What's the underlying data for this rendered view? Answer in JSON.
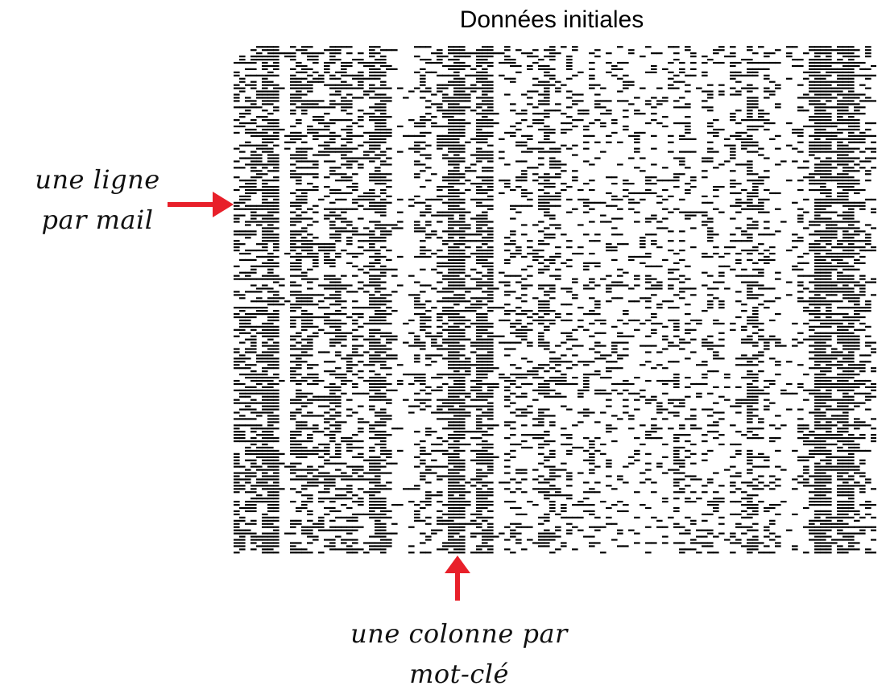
{
  "chart_data": {
    "type": "heatmap",
    "title": "Données initiales",
    "xlabel": "",
    "ylabel": "",
    "rows": 160,
    "columns": 114,
    "colors": {
      "present": "#000000",
      "absent": "#ffffff"
    },
    "column_density_profile": [
      0.45,
      0.45,
      0.5,
      0.55,
      0.45,
      0.78,
      0.8,
      0.78,
      0.1,
      0.05,
      0.58,
      0.62,
      0.55,
      0.58,
      0.38,
      0.35,
      0.45,
      0.55,
      0.5,
      0.4,
      0.45,
      0.4,
      0.35,
      0.3,
      0.72,
      0.75,
      0.72,
      0.4,
      0.12,
      0.08,
      0.05,
      0.1,
      0.35,
      0.4,
      0.35,
      0.3,
      0.4,
      0.45,
      0.88,
      0.92,
      0.88,
      0.35,
      0.3,
      0.72,
      0.75,
      0.72,
      0.05,
      0.1,
      0.35,
      0.38,
      0.3,
      0.35,
      0.25,
      0.2,
      0.45,
      0.5,
      0.45,
      0.3,
      0.25,
      0.28,
      0.2,
      0.18,
      0.22,
      0.25,
      0.2,
      0.15,
      0.3,
      0.28,
      0.22,
      0.2,
      0.18,
      0.2,
      0.15,
      0.3,
      0.25,
      0.22,
      0.2,
      0.18,
      0.35,
      0.3,
      0.25,
      0.3,
      0.1,
      0.25,
      0.35,
      0.3,
      0.28,
      0.2,
      0.25,
      0.3,
      0.22,
      0.65,
      0.6,
      0.35,
      0.3,
      0.25,
      0.2,
      0.05,
      0.1,
      0.15,
      0.35,
      0.3,
      0.38,
      0.9,
      0.88,
      0.85,
      0.4,
      0.78,
      0.8,
      0.75,
      0.45,
      0.4,
      0.35,
      0.3
    ]
  },
  "annotations": {
    "row_label_line1": "une ligne",
    "row_label_line2": "par mail",
    "column_label_line1": "une colonne par",
    "column_label_line2": "mot-clé"
  },
  "arrow_color": "#e8202a"
}
